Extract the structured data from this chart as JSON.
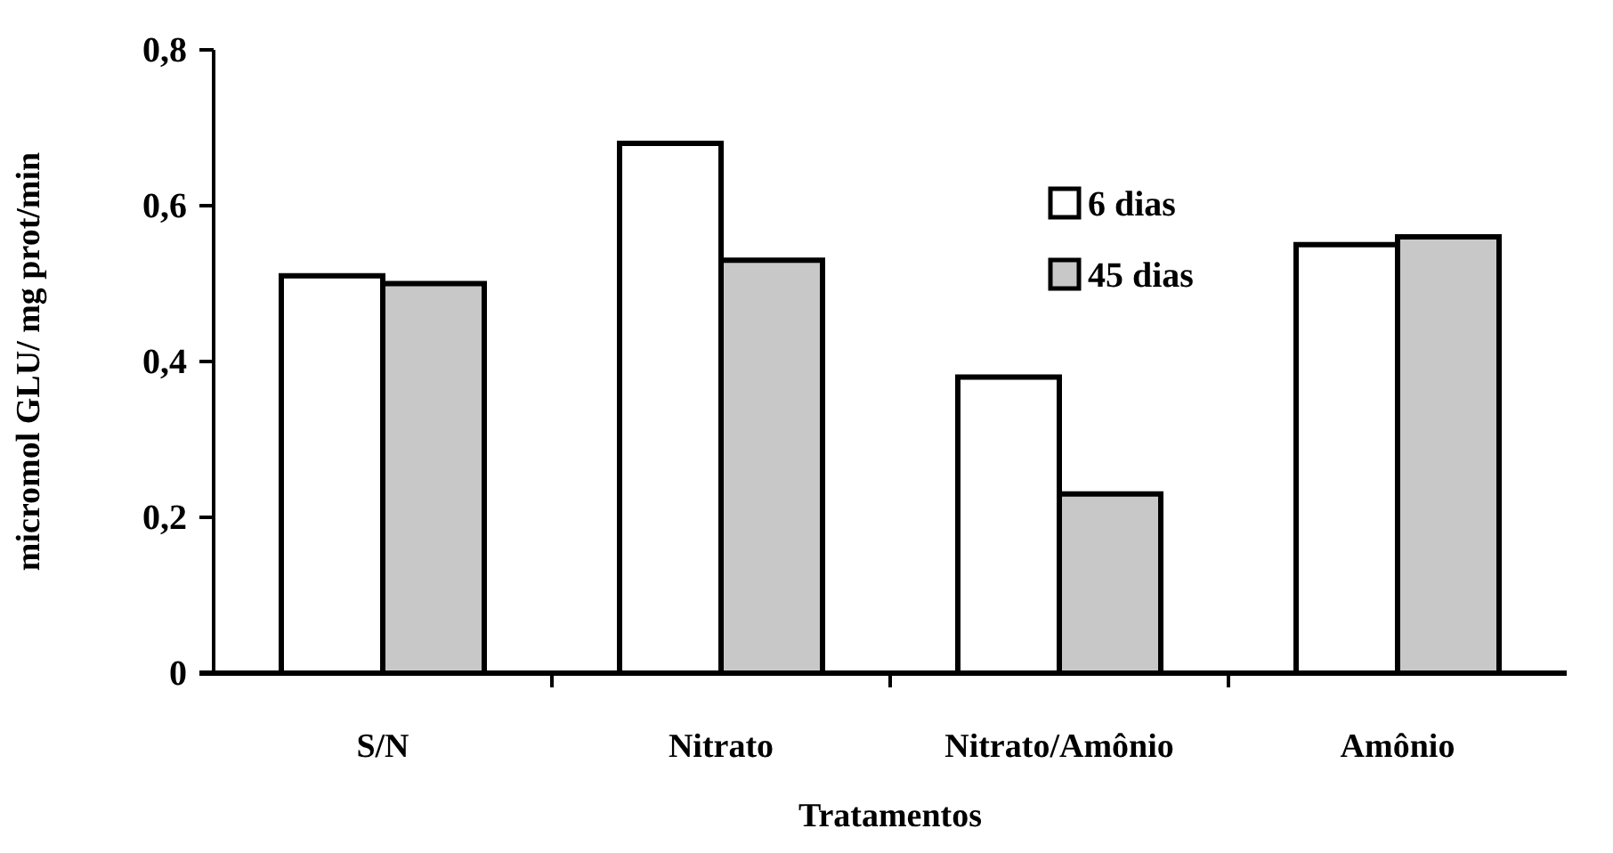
{
  "chart_data": {
    "type": "bar",
    "xlabel": "Tratamentos",
    "ylabel": "micromol GLU/ mg prot/min",
    "categories": [
      "S/N",
      "Nitrato",
      "Nitrato/Amônio",
      "Amônio"
    ],
    "series": [
      {
        "name": "6 dias",
        "color": "#ffffff",
        "values": [
          0.51,
          0.68,
          0.38,
          0.55
        ]
      },
      {
        "name": "45 dias",
        "color": "#c8c8c8",
        "values": [
          0.5,
          0.53,
          0.23,
          0.56
        ]
      }
    ],
    "ylim": [
      0,
      0.8
    ],
    "yticks": [
      {
        "value": 0,
        "label": "0"
      },
      {
        "value": 0.2,
        "label": "0,2"
      },
      {
        "value": 0.4,
        "label": "0,4"
      },
      {
        "value": 0.6,
        "label": "0,6"
      },
      {
        "value": 0.8,
        "label": "0,8"
      }
    ],
    "legend": "top right"
  }
}
